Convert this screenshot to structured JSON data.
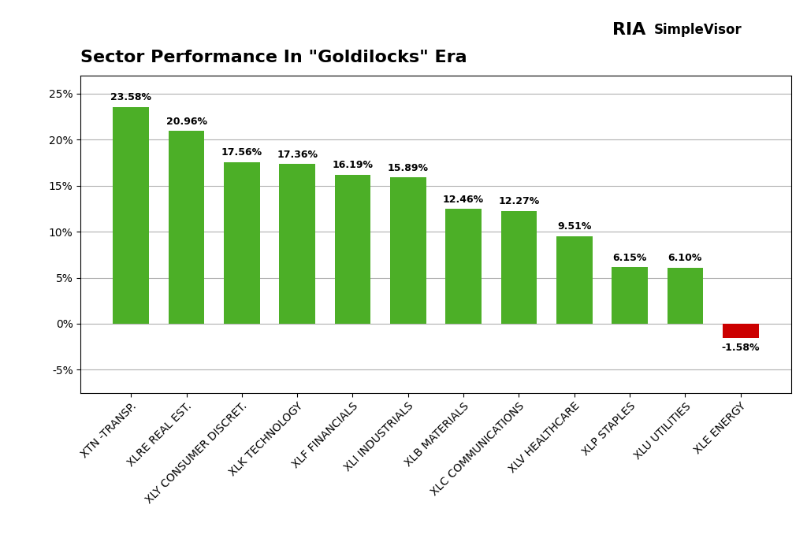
{
  "chart_data": {
    "type": "bar",
    "title": "Sector Performance In \"Goldilocks\" Era",
    "annotations": [
      "RIA",
      "SimpleVisor"
    ],
    "categories": [
      "XTN -TRANSP.",
      "XLRE REAL EST.",
      "XLY CONSUMER DISCRET.",
      "XLK TECHNOLOGY",
      "XLF FINANCIALS",
      "XLI INDUSTRIALS",
      "XLB MATERIALS",
      "XLC COMMUNICATIONS",
      "XLV HEALTHCARE",
      "XLP STAPLES",
      "XLU UTILITIES",
      "XLE ENERGY"
    ],
    "values": [
      23.58,
      20.96,
      17.56,
      17.36,
      16.19,
      15.89,
      12.46,
      12.27,
      9.51,
      6.15,
      6.1,
      -1.58
    ],
    "value_labels": [
      "23.58%",
      "20.96%",
      "17.56%",
      "17.36%",
      "16.19%",
      "15.89%",
      "12.46%",
      "12.27%",
      "9.51%",
      "6.15%",
      "6.10%",
      "-1.58%"
    ],
    "data_labels": true,
    "colors": [
      "#4caf27",
      "#4caf27",
      "#4caf27",
      "#4caf27",
      "#4caf27",
      "#4caf27",
      "#4caf27",
      "#4caf27",
      "#4caf27",
      "#4caf27",
      "#4caf27",
      "#cc0000"
    ],
    "ylim": [
      -7.5,
      27
    ],
    "yticks": [
      {
        "value": -5,
        "label": "-5%"
      },
      {
        "value": 0,
        "label": "0%"
      },
      {
        "value": 5,
        "label": "5%"
      },
      {
        "value": 10,
        "label": "10%"
      },
      {
        "value": 15,
        "label": "15%"
      },
      {
        "value": 20,
        "label": "20%"
      },
      {
        "value": 25,
        "label": "25%"
      }
    ],
    "grid": true
  }
}
